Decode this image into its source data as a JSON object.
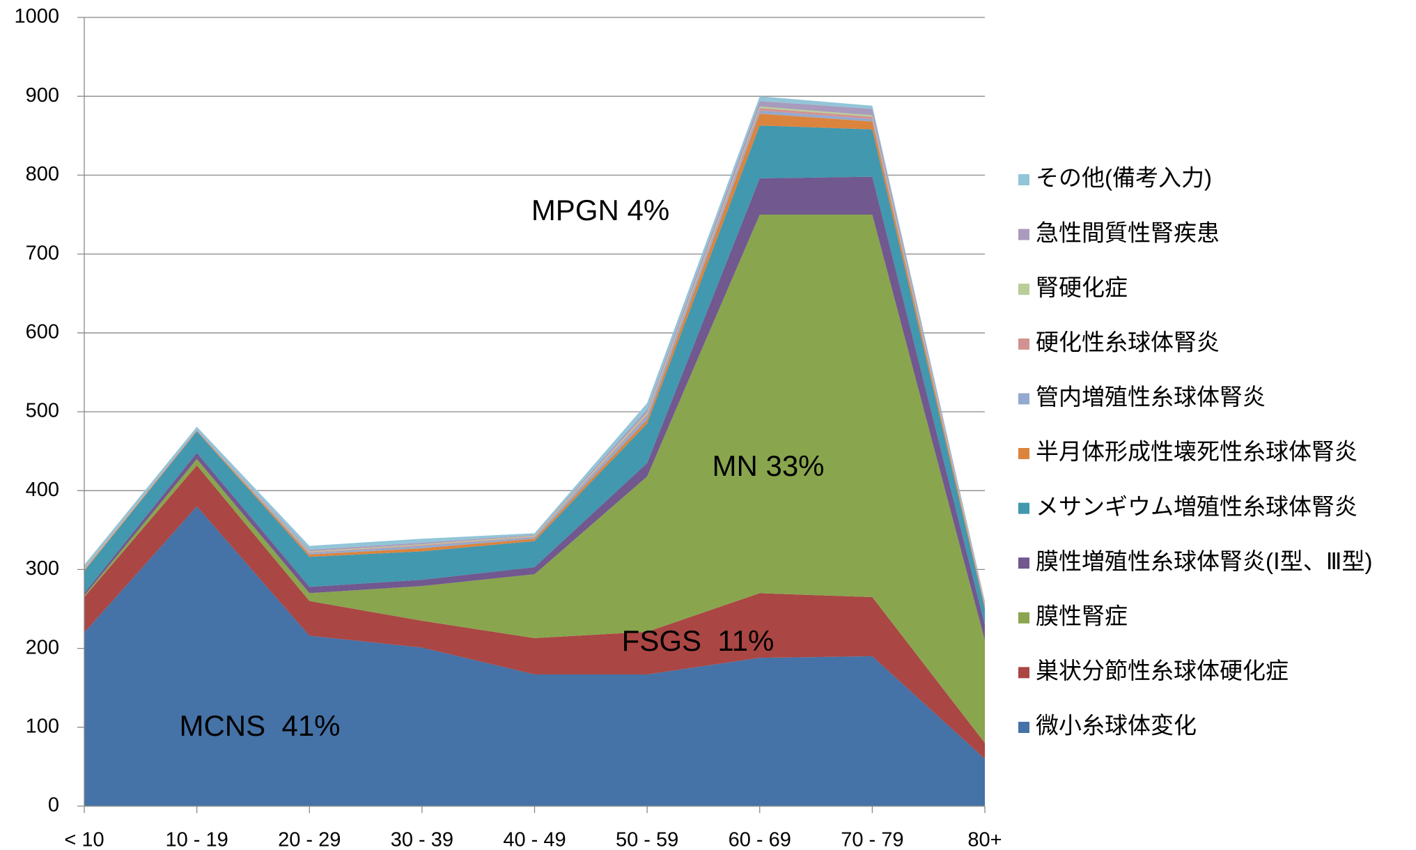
{
  "chart_data": {
    "type": "stacked_area",
    "categories": [
      "< 10",
      "10 - 19",
      "20 - 29",
      "30 - 39",
      "40 - 49",
      "50 - 59",
      "60 - 69",
      "70 - 79",
      "80+"
    ],
    "series": [
      {
        "name": "微小糸球体変化",
        "color": "#4572A7",
        "values": [
          220,
          380,
          216,
          201,
          167,
          167,
          188,
          190,
          60
        ]
      },
      {
        "name": "巣状分節性糸球体硬化症",
        "color": "#AA4643",
        "values": [
          45,
          52,
          44,
          34,
          46,
          54,
          82,
          75,
          20
        ]
      },
      {
        "name": "膜性腎症",
        "color": "#89A54E",
        "values": [
          2,
          8,
          10,
          44,
          81,
          197,
          480,
          485,
          130
        ]
      },
      {
        "name": "膜性増殖性糸球体腎炎(Ⅰ型、Ⅲ型)",
        "color": "#71588F",
        "values": [
          3,
          8,
          8,
          8,
          9,
          17,
          46,
          48,
          20
        ]
      },
      {
        "name": "メサンギウム増殖性糸球体腎炎",
        "color": "#4198AF",
        "values": [
          28,
          27,
          38,
          36,
          33,
          50,
          67,
          60,
          20
        ]
      },
      {
        "name": "半月体形成性壊死性糸球体腎炎",
        "color": "#DB843D",
        "values": [
          1,
          1,
          3,
          4,
          3,
          5,
          15,
          10,
          3
        ]
      },
      {
        "name": "管内増殖性糸球体腎炎",
        "color": "#93A9CF",
        "values": [
          1,
          0,
          2,
          3,
          2,
          5,
          4,
          3,
          1
        ]
      },
      {
        "name": "硬化性糸球体腎炎",
        "color": "#D19392",
        "values": [
          1,
          0,
          1,
          1,
          1,
          2,
          3,
          3,
          1
        ]
      },
      {
        "name": "腎硬化症",
        "color": "#B9CD96",
        "values": [
          1,
          0,
          1,
          1,
          1,
          2,
          2,
          2,
          1
        ]
      },
      {
        "name": "急性間質性腎疾患",
        "color": "#A99BBD",
        "values": [
          1,
          1,
          2,
          2,
          1,
          4,
          7,
          8,
          2
        ]
      },
      {
        "name": "その他(備考入力)",
        "color": "#92C5D8",
        "values": [
          3,
          4,
          5,
          5,
          2,
          8,
          6,
          4,
          2
        ]
      }
    ],
    "annotations": [
      "MPGN 4%",
      "MN 33%",
      "FSGS  11%",
      "MCNS  41%"
    ],
    "ylim": [
      0,
      1000
    ],
    "yticks": [
      0,
      100,
      200,
      300,
      400,
      500,
      600,
      700,
      800,
      900,
      1000
    ],
    "grid": true,
    "legend": "right"
  }
}
